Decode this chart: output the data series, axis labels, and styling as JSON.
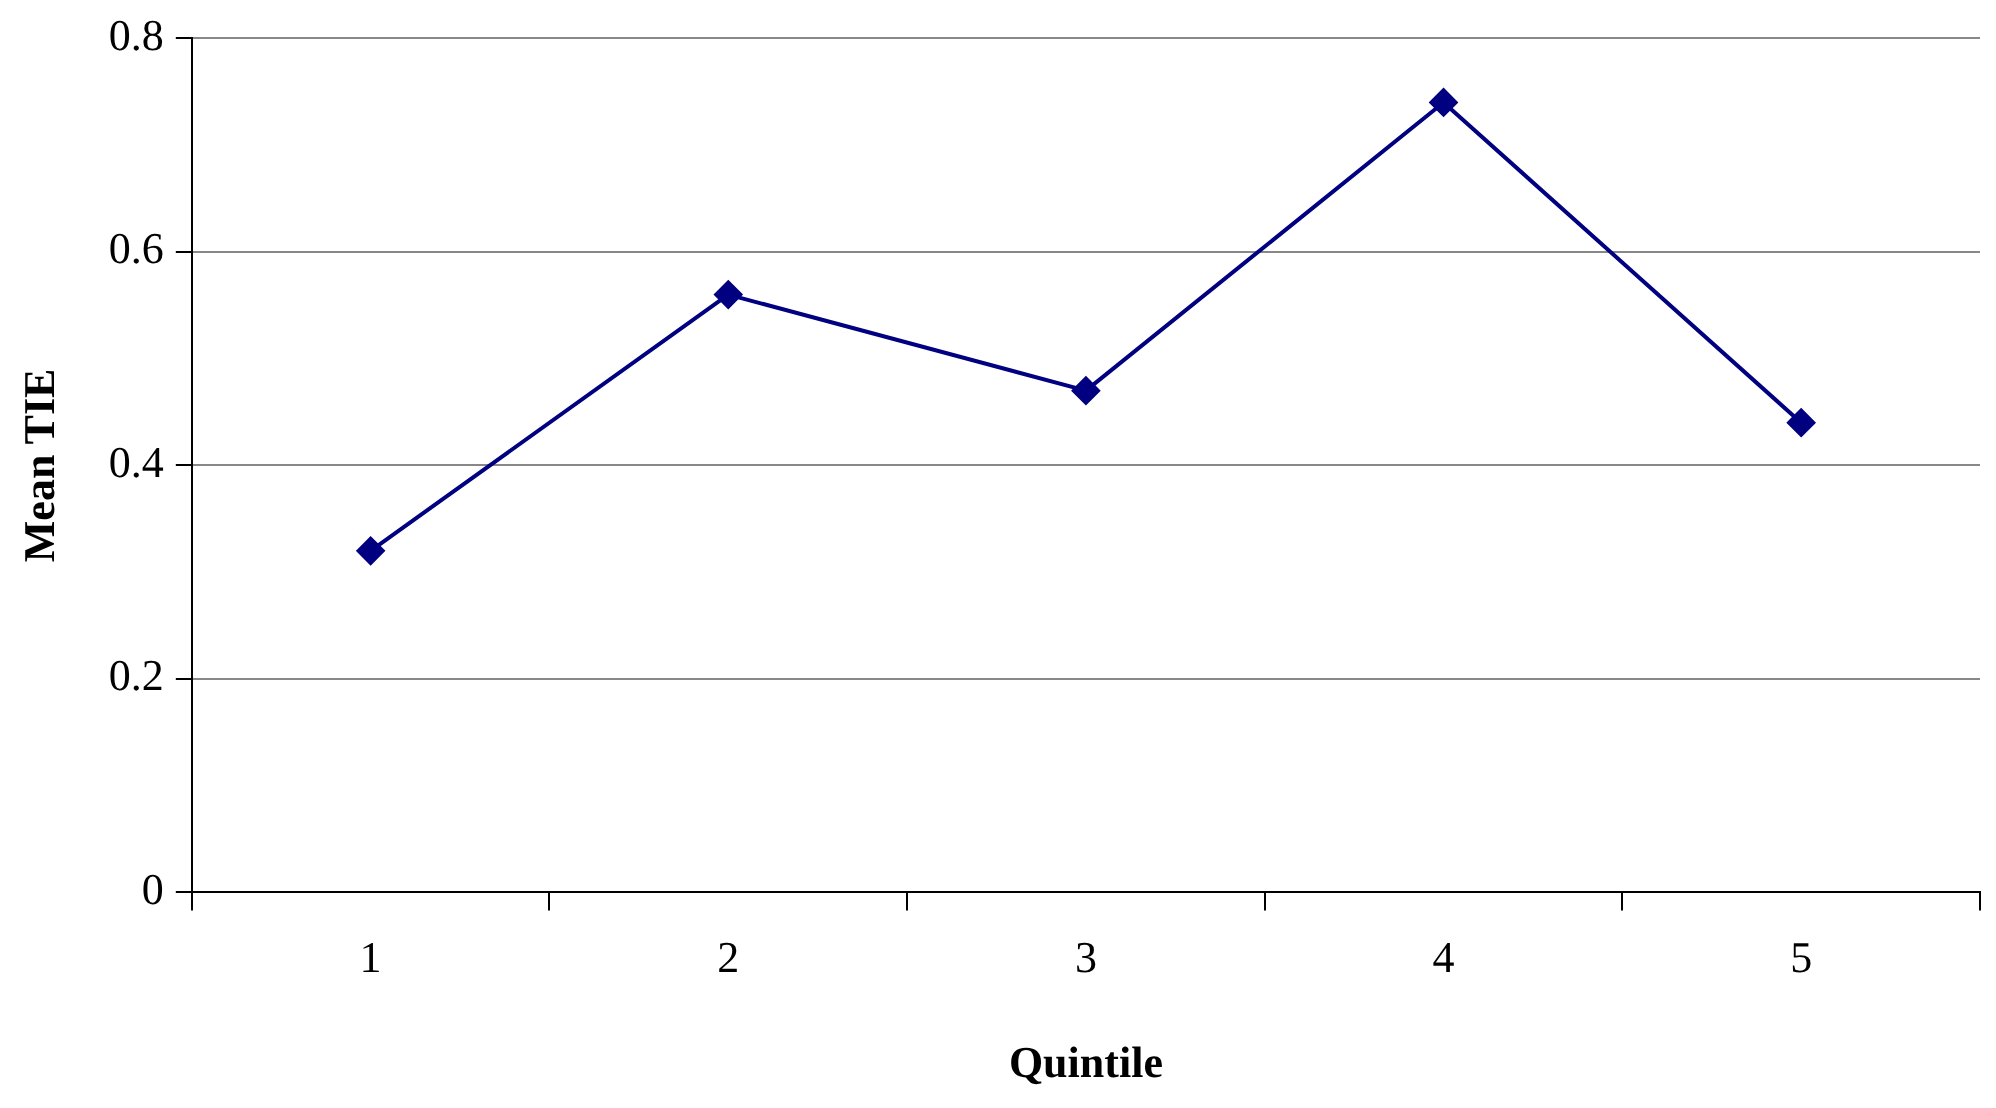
{
  "chart_data": {
    "type": "line",
    "xlabel": "Quintile",
    "ylabel": "Mean TIE",
    "categories": [
      "1",
      "2",
      "3",
      "4",
      "5"
    ],
    "series": [
      {
        "color": "#000080",
        "values": [
          0.32,
          0.56,
          0.47,
          0.74,
          0.44
        ]
      }
    ],
    "ylim": [
      0,
      0.8
    ],
    "yticks": [
      0,
      0.2,
      0.4,
      0.6,
      0.8
    ],
    "grid": "y",
    "marker": "diamond",
    "line_style": "solid",
    "legend": false
  }
}
